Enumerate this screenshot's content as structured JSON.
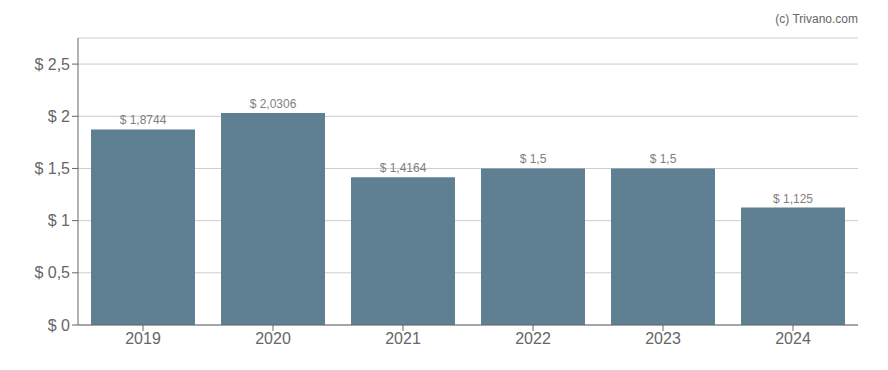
{
  "chart_data": {
    "type": "bar",
    "categories": [
      "2019",
      "2020",
      "2021",
      "2022",
      "2023",
      "2024"
    ],
    "values": [
      1.8744,
      2.0306,
      1.4164,
      1.5,
      1.5,
      1.125
    ],
    "value_labels": [
      "$ 1,8744",
      "$ 2,0306",
      "$ 1,4164",
      "$ 1,5",
      "$ 1,5",
      "$ 1,125"
    ],
    "data_labels": true,
    "color": "#5f7f93",
    "ylim": [
      0,
      2.75
    ],
    "yticks": [
      {
        "value": 0,
        "label": "$ 0"
      },
      {
        "value": 0.5,
        "label": "$ 0,5"
      },
      {
        "value": 1.0,
        "label": "$ 1"
      },
      {
        "value": 1.5,
        "label": "$ 1,5"
      },
      {
        "value": 2.0,
        "label": "$ 2"
      },
      {
        "value": 2.5,
        "label": "$ 2,5"
      }
    ],
    "grid": true,
    "annotations": [
      "(c) Trivano.com"
    ]
  }
}
